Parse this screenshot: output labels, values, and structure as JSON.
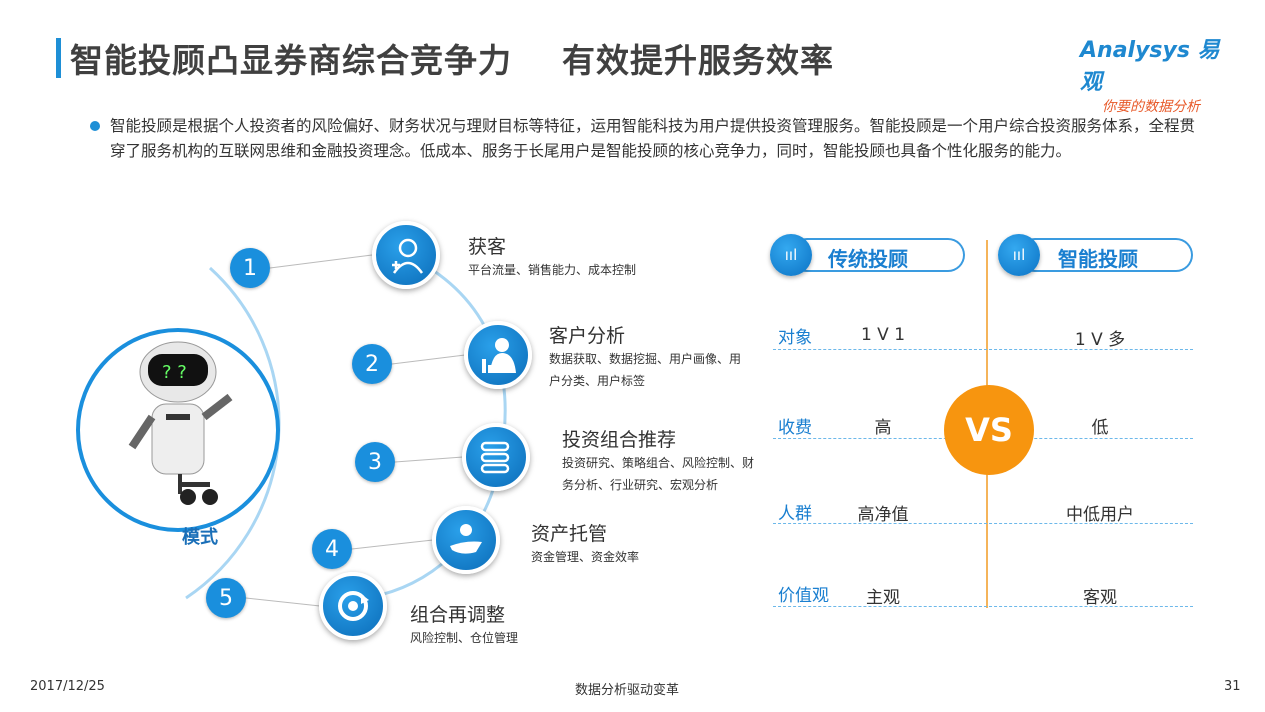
{
  "title": "智能投顾凸显券商综合竞争力    有效提升服务效率",
  "logo": {
    "brand": "Analysys 易观",
    "slogan": "你要的数据分析"
  },
  "intro": "智能投顾是根据个人投资者的风险偏好、财务状况与理财目标等特征，运用智能科技为用户提供投资管理服务。智能投顾是一个用户综合投资服务体系，全程贯穿了服务机构的互联网思维和金融投资理念。低成本、服务于长尾用户是智能投顾的核心竞争力，同时，智能投顾也具备个性化服务的能力。",
  "mode": {
    "label": "模式",
    "steps": [
      {
        "num": "1",
        "title": "获客",
        "desc": "平台流量、销售能力、成本控制",
        "icon": "user-add-icon"
      },
      {
        "num": "2",
        "title": "客户分析",
        "desc": "数据获取、数据挖掘、用户画像、用户分类、用户标签",
        "icon": "user-chart-icon"
      },
      {
        "num": "3",
        "title": "投资组合推荐",
        "desc": "投资研究、策略组合、风险控制、财务分析、行业研究、宏观分析",
        "icon": "portfolio-icon"
      },
      {
        "num": "4",
        "title": "资产托管",
        "desc": "资金管理、资金效率",
        "icon": "hand-coin-icon"
      },
      {
        "num": "5",
        "title": "组合再调整",
        "desc": "风险控制、仓位管理",
        "icon": "refresh-icon"
      }
    ]
  },
  "compare": {
    "left_title": "传统投顾",
    "right_title": "智能投顾",
    "vs": "VS",
    "accent": "#f7950f",
    "rows": [
      {
        "label": "对象",
        "left": "1 V 1",
        "right": "1 V 多"
      },
      {
        "label": "收费",
        "left": "高",
        "right": "低"
      },
      {
        "label": "人群",
        "left": "高净值",
        "right": "中低用户"
      },
      {
        "label": "价值观",
        "left": "主观",
        "right": "客观"
      }
    ]
  },
  "footer": {
    "date": "2017/12/25",
    "center": "数据分析驱动变革",
    "page": "31"
  }
}
